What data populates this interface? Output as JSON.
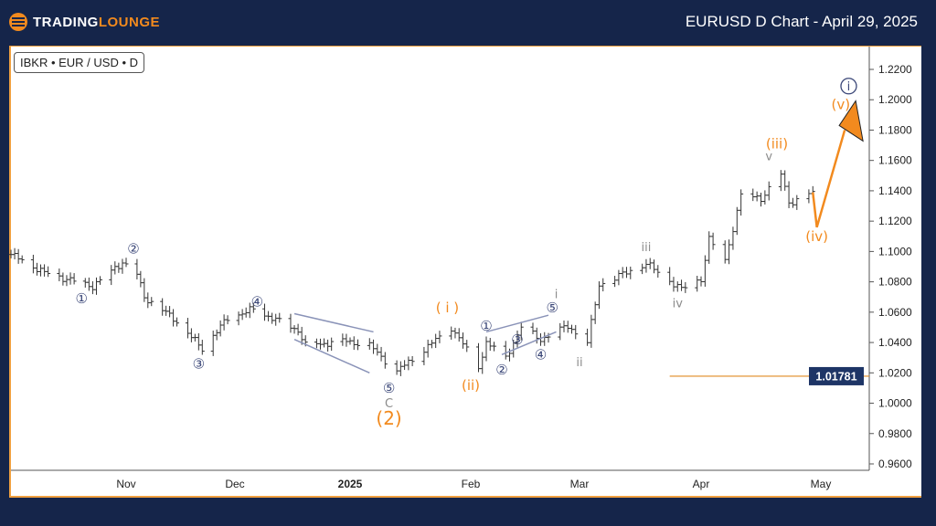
{
  "header": {
    "title": "EURUSD D Chart - April 29, 2025",
    "logo_text_a": "TRADING",
    "logo_text_b": "LOUNGE"
  },
  "symbol_label": "IBKR • EUR / USD • D",
  "colors": {
    "background": "#15254a",
    "accent": "#f28a1e",
    "wave_navy": "#3b4778",
    "wave_grey": "#8c8c8c",
    "channel": "#8a93b8",
    "price_box": "#1e3566"
  },
  "chart_data": {
    "type": "ohlc",
    "title": "EURUSD D Chart - April 29, 2025",
    "ylim": [
      0.95,
      1.23
    ],
    "xlim": [
      "2024-10-01",
      "2025-05-20"
    ],
    "y_ticks": [
      "1.2200",
      "1.2000",
      "1.1800",
      "1.1600",
      "1.1400",
      "1.1200",
      "1.1000",
      "1.0800",
      "1.0600",
      "1.0400",
      "1.0200",
      "1.0000",
      "0.9800",
      "0.9600"
    ],
    "x_ticks": [
      {
        "label": "Nov",
        "date": "2024-11-01"
      },
      {
        "label": "Dec",
        "date": "2024-12-01"
      },
      {
        "label": "2025",
        "date": "2025-01-01"
      },
      {
        "label": "Feb",
        "date": "2025-02-01"
      },
      {
        "label": "Mar",
        "date": "2025-03-01"
      },
      {
        "label": "Apr",
        "date": "2025-04-01"
      },
      {
        "label": "May",
        "date": "2025-05-01"
      }
    ],
    "price_path": [
      [
        "2024-10-01",
        1.098
      ],
      [
        "2024-10-10",
        1.086
      ],
      [
        "2024-10-23",
        1.077
      ],
      [
        "2024-10-31",
        1.093
      ],
      [
        "2024-11-04",
        1.085
      ],
      [
        "2024-11-06",
        1.07
      ],
      [
        "2024-11-14",
        1.056
      ],
      [
        "2024-11-22",
        1.036
      ],
      [
        "2024-11-29",
        1.056
      ],
      [
        "2024-12-06",
        1.062
      ],
      [
        "2024-12-18",
        1.048
      ],
      [
        "2024-12-20",
        1.038
      ],
      [
        "2024-12-31",
        1.041
      ],
      [
        "2025-01-06",
        1.038
      ],
      [
        "2025-01-13",
        1.021
      ],
      [
        "2025-01-17",
        1.029
      ],
      [
        "2025-01-27",
        1.05
      ],
      [
        "2025-02-03",
        1.024
      ],
      [
        "2025-02-05",
        1.04
      ],
      [
        "2025-02-10",
        1.03
      ],
      [
        "2025-02-14",
        1.05
      ],
      [
        "2025-02-19",
        1.042
      ],
      [
        "2025-02-26",
        1.051
      ],
      [
        "2025-03-03",
        1.04
      ],
      [
        "2025-03-06",
        1.078
      ],
      [
        "2025-03-18",
        1.092
      ],
      [
        "2025-03-27",
        1.075
      ],
      [
        "2025-04-01",
        1.082
      ],
      [
        "2025-04-03",
        1.108
      ],
      [
        "2025-04-07",
        1.094
      ],
      [
        "2025-04-11",
        1.137
      ],
      [
        "2025-04-16",
        1.135
      ],
      [
        "2025-04-21",
        1.151
      ],
      [
        "2025-04-23",
        1.132
      ],
      [
        "2025-04-29",
        1.139
      ]
    ],
    "projection": [
      [
        "2025-04-29",
        1.139
      ],
      [
        "2025-04-30",
        1.116
      ],
      [
        "2025-05-07",
        1.18
      ]
    ],
    "current_price": {
      "label": "1.01781",
      "value": 1.01781,
      "from": "2025-03-24"
    },
    "channels": [
      [
        [
          "2024-12-17",
          1.059
        ],
        [
          "2025-01-07",
          1.047
        ]
      ],
      [
        [
          "2024-12-17",
          1.042
        ],
        [
          "2025-01-06",
          1.02
        ]
      ],
      [
        [
          "2025-02-05",
          1.047
        ],
        [
          "2025-02-21",
          1.058
        ]
      ],
      [
        [
          "2025-02-09",
          1.032
        ],
        [
          "2025-02-23",
          1.047
        ]
      ]
    ],
    "wave_labels": [
      {
        "text": "①",
        "date": "2024-10-20",
        "price": 1.069,
        "style": "navy"
      },
      {
        "text": "②",
        "date": "2024-11-03",
        "price": 1.102,
        "style": "navy"
      },
      {
        "text": "③",
        "date": "2024-11-21",
        "price": 1.026,
        "style": "navy"
      },
      {
        "text": "④",
        "date": "2024-12-07",
        "price": 1.067,
        "style": "navy"
      },
      {
        "text": "⑤",
        "date": "2025-01-11",
        "price": 1.01,
        "style": "navy"
      },
      {
        "text": "C",
        "date": "2025-01-11",
        "price": 1.0,
        "style": "grey"
      },
      {
        "text": "(2)",
        "date": "2025-01-11",
        "price": 0.99,
        "style": "orange-big"
      },
      {
        "text": "( i )",
        "date": "2025-01-26",
        "price": 1.063,
        "style": "orange"
      },
      {
        "text": "(ii)",
        "date": "2025-02-01",
        "price": 1.012,
        "style": "orange"
      },
      {
        "text": "①",
        "date": "2025-02-05",
        "price": 1.051,
        "style": "navy"
      },
      {
        "text": "②",
        "date": "2025-02-09",
        "price": 1.022,
        "style": "navy"
      },
      {
        "text": "③",
        "date": "2025-02-13",
        "price": 1.042,
        "style": "navy"
      },
      {
        "text": "④",
        "date": "2025-02-19",
        "price": 1.032,
        "style": "navy"
      },
      {
        "text": "⑤",
        "date": "2025-02-22",
        "price": 1.063,
        "style": "navy"
      },
      {
        "text": "i",
        "date": "2025-02-23",
        "price": 1.072,
        "style": "grey"
      },
      {
        "text": "ii",
        "date": "2025-03-01",
        "price": 1.027,
        "style": "grey"
      },
      {
        "text": "iii",
        "date": "2025-03-18",
        "price": 1.103,
        "style": "grey"
      },
      {
        "text": "iv",
        "date": "2025-03-26",
        "price": 1.066,
        "style": "grey"
      },
      {
        "text": "v",
        "date": "2025-04-18",
        "price": 1.163,
        "style": "grey"
      },
      {
        "text": "(iii)",
        "date": "2025-04-20",
        "price": 1.171,
        "style": "orange"
      },
      {
        "text": "(iv)",
        "date": "2025-04-30",
        "price": 1.11,
        "style": "orange"
      },
      {
        "text": "(v)",
        "date": "2025-05-06",
        "price": 1.197,
        "style": "orange"
      },
      {
        "text": "i",
        "date": "2025-05-08",
        "price": 1.209,
        "style": "navy-circle"
      }
    ]
  }
}
